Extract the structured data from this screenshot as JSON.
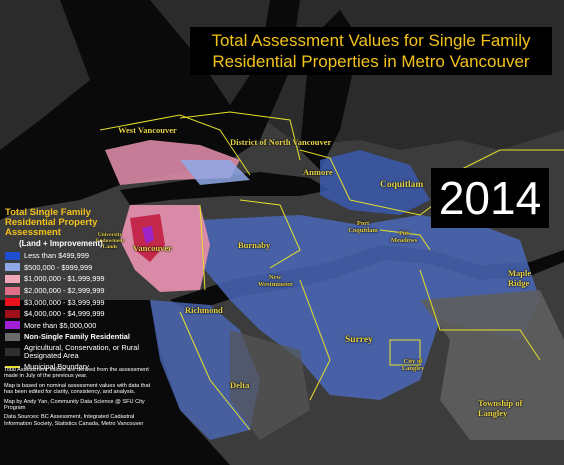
{
  "title": {
    "line1": "Total Assessment Values for Single Family",
    "line2": "Residential Properties in Metro Vancouver"
  },
  "year": "2014",
  "legend": {
    "title_lines": [
      "Total Single Family",
      "Residential Property",
      "Assessment"
    ],
    "subtitle": "(Land + Improvement)",
    "items": [
      {
        "label": "Less than $499,999",
        "color": "#1f4fd1"
      },
      {
        "label": "$500,000 - $999,999",
        "color": "#8fa8e6"
      },
      {
        "label": "$1,000,000 - $1,999,999",
        "color": "#f0a8b8"
      },
      {
        "label": "$2,000,000 - $2,999,999",
        "color": "#e26f88"
      },
      {
        "label": "$3,000,000 - $3,999,999",
        "color": "#e8121e"
      },
      {
        "label": "$4,000,000 - $4,999,999",
        "color": "#a0101a"
      },
      {
        "label": "More than $5,000,000",
        "color": "#a31fd6"
      },
      {
        "label": "Non-Single Family Residential",
        "color": "#6b6b6b"
      },
      {
        "label": "Agricultural, Conservation, or Rural Designated Area",
        "color": "#303030"
      },
      {
        "label": "Municipal Boundary",
        "color": "#e6e02a"
      }
    ]
  },
  "notes": [
    "Total Assessment Values are derived from the assessment made in July of the previous year.",
    "Map is based on nominal assessment values with data that has been edited for clarity, consistency, and analysis.",
    "Map by Andy Yan, Community Data Science @ SFU City Program",
    "Data Sources: BC Assessment, Integrated Cadastral Information Society, Statistics Canada, Metro Vancouver"
  ],
  "places": {
    "west_vancouver": "West Vancouver",
    "north_vancouver_district": "District of North Vancouver",
    "anmore": "Anmore",
    "coquitlam": "Coquitlam",
    "vancouver": "Vancouver",
    "burnaby": "Burnaby",
    "port_coquitlam": "Port Coquitlam",
    "pitt_meadows": "Pitt Meadows",
    "maple_ridge": "Maple Ridge",
    "richmond": "Richmond",
    "surrey": "Surrey",
    "delta": "Delta",
    "city_of_langley": "City of Langley",
    "township_of_langley": "Township of Langley",
    "new_westminster": "New Westminster",
    "university_endowment_lands": "University Endowment Lands"
  }
}
